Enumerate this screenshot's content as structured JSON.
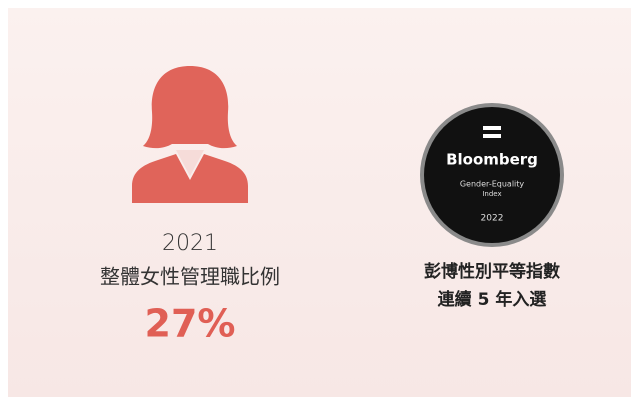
{
  "stat": {
    "year": "2021",
    "label": "整體女性管理職比例",
    "value": "27%"
  },
  "badge": {
    "brand": "Bloomberg",
    "line1": "Gender-Equality",
    "line2": "Index",
    "year": "2022"
  },
  "caption": {
    "line1": "彭博性別平等指數",
    "line2": "連續 5 年入選"
  }
}
